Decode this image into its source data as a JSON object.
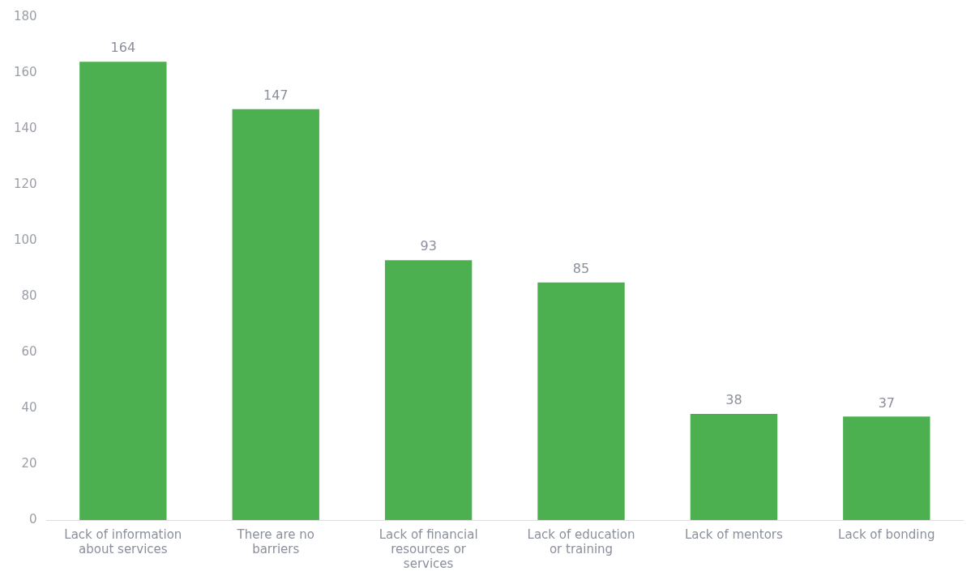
{
  "chart_data": {
    "type": "bar",
    "categories": [
      "Lack of information about services",
      "There are no barriers",
      "Lack of financial resources or services",
      "Lack of education or training",
      "Lack of mentors",
      "Lack of bonding"
    ],
    "values": [
      164,
      147,
      93,
      85,
      38,
      37
    ],
    "color": "#4cb050",
    "ylim": [
      0,
      180
    ],
    "yticks": [
      0,
      20,
      40,
      60,
      80,
      100,
      120,
      140,
      160,
      180
    ],
    "grid": false,
    "legend": false,
    "data_labels": true
  }
}
